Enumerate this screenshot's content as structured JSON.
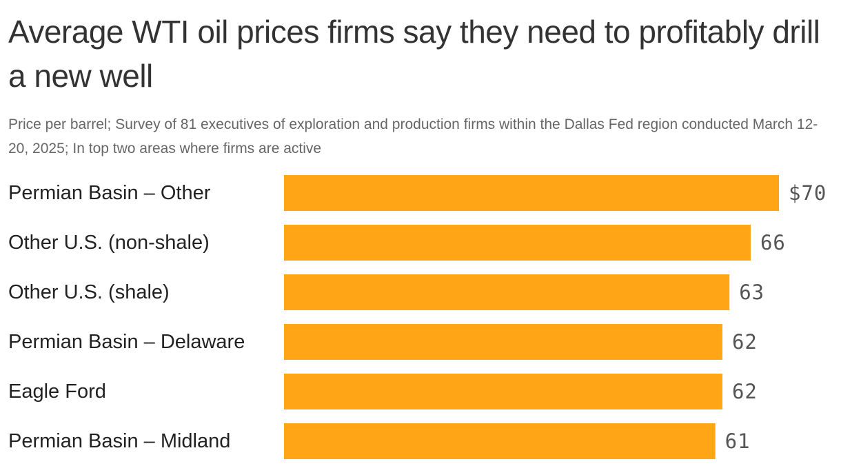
{
  "title": "Average WTI oil prices firms say they need to profitably drill a new well",
  "subtitle": "Price per barrel; Survey of 81 executives of exploration and production firms within the Dallas Fed region conducted March 12-20, 2025; In top two areas where firms are active",
  "colors": {
    "bar": "#FFA516",
    "title": "#333333",
    "subtitle": "#666666",
    "category_label": "#222222",
    "value_label": "#555555"
  },
  "chart_data": {
    "type": "bar",
    "orientation": "horizontal",
    "title": "Average WTI oil prices firms say they need to profitably drill a new well",
    "subtitle": "Price per barrel; Survey of 81 executives of exploration and production firms within the Dallas Fed region conducted March 12-20, 2025; In top two areas where firms are active",
    "categories": [
      "Permian Basin – Other",
      "Other U.S. (non-shale)",
      "Other U.S. (shale)",
      "Permian Basin – Delaware",
      "Eagle Ford",
      "Permian Basin – Midland"
    ],
    "values": [
      70,
      66,
      63,
      62,
      62,
      61
    ],
    "value_labels": [
      "$70",
      "66",
      "63",
      "62",
      "62",
      "61"
    ],
    "unit": "dollars per barrel",
    "xlim": [
      0,
      70
    ],
    "grid": false,
    "legend": "none"
  }
}
